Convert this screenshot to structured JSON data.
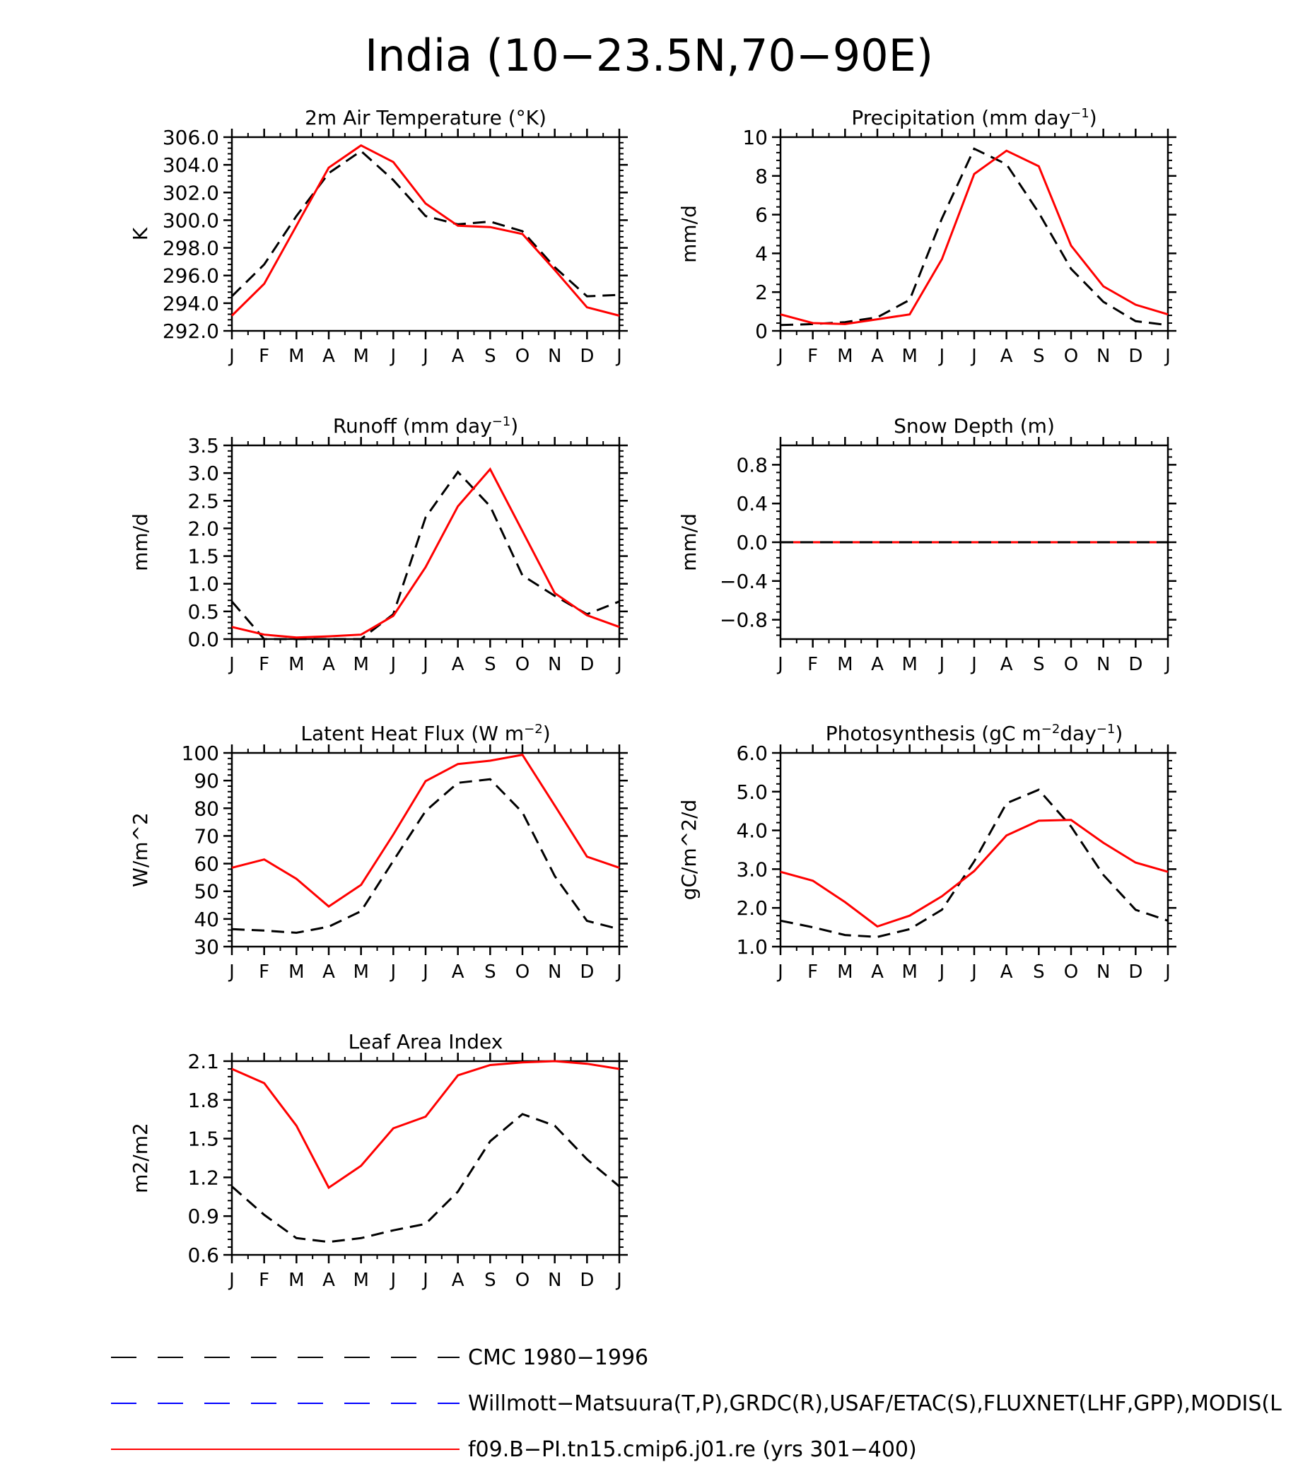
{
  "page_title": "India (10−23.5N,70−90E)",
  "months": [
    "J",
    "F",
    "M",
    "A",
    "M",
    "J",
    "J",
    "A",
    "S",
    "O",
    "N",
    "D",
    "J"
  ],
  "colors": {
    "model": "#ff0000",
    "cmc": "#000000",
    "obs": "#0000ff"
  },
  "legend": [
    {
      "label": "CMC 1980−1996",
      "color": "#000000",
      "style": "dashed"
    },
    {
      "label": "Willmott−Matsuura(T,P),GRDC(R),USAF/ETAC(S),FLUXNET(LHF,GPP),MODIS(L",
      "color": "#0000ff",
      "style": "dashed"
    },
    {
      "label": "f09.B−PI.tn15.cmip6.j01.re (yrs 301−400)",
      "color": "#ff0000",
      "style": "solid"
    }
  ],
  "chart_data": [
    {
      "type": "line",
      "title": "2m Air Temperature (°K)",
      "ylabel": "K",
      "ylim": [
        292,
        306
      ],
      "yticks": [
        292,
        294,
        296,
        298,
        300,
        302,
        304,
        306
      ],
      "ytick_labels": [
        "292.0",
        "294.0",
        "296.0",
        "298.0",
        "300.0",
        "302.0",
        "304.0",
        "306.0"
      ],
      "series": [
        {
          "role": "cmc",
          "style": "dashed",
          "values": [
            294.5,
            296.8,
            300.3,
            303.4,
            305.0,
            302.9,
            300.3,
            299.7,
            299.9,
            299.2,
            296.6,
            294.5,
            294.6
          ]
        },
        {
          "role": "model",
          "style": "solid",
          "values": [
            293.1,
            295.4,
            299.6,
            303.8,
            305.4,
            304.2,
            301.2,
            299.6,
            299.5,
            299.0,
            296.4,
            293.7,
            293.1
          ]
        }
      ]
    },
    {
      "type": "line",
      "title": "Precipitation (mm day",
      "title_sup": "−1",
      "title_end": ")",
      "ylabel": "mm/d",
      "ylim": [
        0,
        10
      ],
      "yticks": [
        0,
        2,
        4,
        6,
        8,
        10
      ],
      "ytick_labels": [
        "0",
        "2",
        "4",
        "6",
        "8",
        "10"
      ],
      "series": [
        {
          "role": "cmc",
          "style": "dashed",
          "values": [
            0.3,
            0.35,
            0.45,
            0.7,
            1.6,
            5.8,
            9.4,
            8.6,
            6.1,
            3.2,
            1.5,
            0.5,
            0.3
          ]
        },
        {
          "role": "model",
          "style": "solid",
          "values": [
            0.85,
            0.4,
            0.35,
            0.6,
            0.85,
            3.7,
            8.1,
            9.3,
            8.5,
            4.4,
            2.3,
            1.35,
            0.85
          ]
        }
      ]
    },
    {
      "type": "line",
      "title": "Runoff (mm day",
      "title_sup": "−1",
      "title_end": ")",
      "ylabel": "mm/d",
      "ylim": [
        0,
        3.5
      ],
      "yticks": [
        0,
        0.5,
        1.0,
        1.5,
        2.0,
        2.5,
        3.0,
        3.5
      ],
      "ytick_labels": [
        "0.0",
        "0.5",
        "1.0",
        "1.5",
        "2.0",
        "2.5",
        "3.0",
        "3.5"
      ],
      "series": [
        {
          "role": "cmc",
          "style": "dashed",
          "values": [
            0.68,
            0.0,
            0.0,
            0.0,
            0.0,
            0.45,
            2.2,
            3.02,
            2.4,
            1.15,
            0.78,
            0.45,
            0.68
          ]
        },
        {
          "role": "model",
          "style": "solid",
          "values": [
            0.22,
            0.08,
            0.03,
            0.05,
            0.08,
            0.42,
            1.3,
            2.4,
            3.07,
            1.95,
            0.83,
            0.43,
            0.22
          ]
        }
      ]
    },
    {
      "type": "line",
      "title": "Snow Depth (m)",
      "ylabel": "mm/d",
      "ylim": [
        -1,
        1
      ],
      "yticks": [
        -0.8,
        -0.4,
        0.0,
        0.4,
        0.8
      ],
      "ytick_labels": [
        "−0.8",
        "−0.4",
        "0.0",
        "0.4",
        "0.8"
      ],
      "series": [
        {
          "role": "model",
          "style": "solid",
          "values": [
            0,
            0,
            0,
            0,
            0,
            0,
            0,
            0,
            0,
            0,
            0,
            0,
            0
          ]
        },
        {
          "role": "cmc",
          "style": "dashed",
          "values": [
            0,
            0,
            0,
            0,
            0,
            0,
            0,
            0,
            0,
            0,
            0,
            0,
            0
          ]
        }
      ]
    },
    {
      "type": "line",
      "title": "Latent Heat Flux (W m",
      "title_sup": "−2",
      "title_end": ")",
      "ylabel": "W/m^2",
      "ylim": [
        30,
        100
      ],
      "yticks": [
        30,
        40,
        50,
        60,
        70,
        80,
        90,
        100
      ],
      "ytick_labels": [
        "30",
        "40",
        "50",
        "60",
        "70",
        "80",
        "90",
        "100"
      ],
      "series": [
        {
          "role": "cmc",
          "style": "dashed",
          "values": [
            36.3,
            35.8,
            35.0,
            37.2,
            42.8,
            61.0,
            79.0,
            89.2,
            90.5,
            78.5,
            55.5,
            39.3,
            36.3
          ]
        },
        {
          "role": "model",
          "style": "solid",
          "values": [
            58.5,
            61.5,
            54.5,
            44.5,
            52.3,
            70.5,
            89.8,
            96.0,
            97.2,
            99.3,
            81.0,
            62.5,
            58.5
          ]
        }
      ]
    },
    {
      "type": "line",
      "title": "Photosynthesis (gC m",
      "title_sup": "−2",
      "title_mid": "day",
      "title_sup2": "−1",
      "title_end": ")",
      "ylabel": "gC/m^2/d",
      "ylim": [
        1,
        6
      ],
      "yticks": [
        1,
        2,
        3,
        4,
        5,
        6
      ],
      "ytick_labels": [
        "1.0",
        "2.0",
        "3.0",
        "4.0",
        "5.0",
        "6.0"
      ],
      "series": [
        {
          "role": "cmc",
          "style": "dashed",
          "values": [
            1.67,
            1.5,
            1.3,
            1.25,
            1.45,
            1.95,
            3.2,
            4.7,
            5.05,
            4.1,
            2.85,
            1.95,
            1.67
          ]
        },
        {
          "role": "model",
          "style": "solid",
          "values": [
            2.93,
            2.7,
            2.15,
            1.52,
            1.8,
            2.3,
            2.95,
            3.87,
            4.25,
            4.27,
            3.68,
            3.17,
            2.93
          ]
        }
      ]
    },
    {
      "type": "line",
      "title": "Leaf Area Index",
      "ylabel": "m2/m2",
      "ylim": [
        0.6,
        2.1
      ],
      "yticks": [
        0.6,
        0.9,
        1.2,
        1.5,
        1.8,
        2.1
      ],
      "ytick_labels": [
        "0.6",
        "0.9",
        "1.2",
        "1.5",
        "1.8",
        "2.1"
      ],
      "series": [
        {
          "role": "cmc",
          "style": "dashed",
          "values": [
            1.13,
            0.91,
            0.73,
            0.7,
            0.73,
            0.79,
            0.84,
            1.09,
            1.48,
            1.69,
            1.6,
            1.34,
            1.13
          ]
        },
        {
          "role": "model",
          "style": "solid",
          "values": [
            2.04,
            1.93,
            1.6,
            1.12,
            1.29,
            1.58,
            1.67,
            1.99,
            2.07,
            2.09,
            2.1,
            2.08,
            2.04
          ]
        }
      ]
    }
  ]
}
